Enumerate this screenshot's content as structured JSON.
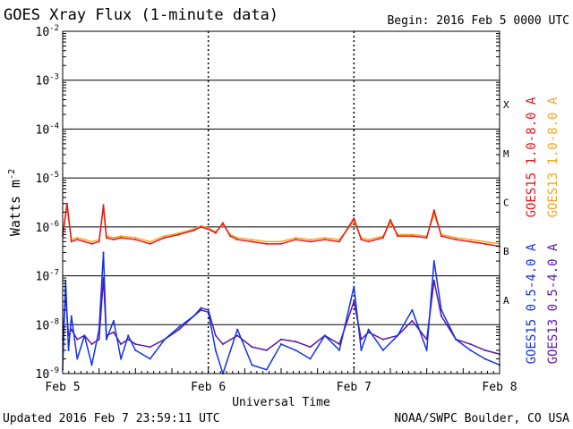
{
  "header": {
    "title": "GOES Xray Flux (1-minute data)",
    "begin_label": "Begin:",
    "begin_value": "2016 Feb 5 0000 UTC"
  },
  "footer": {
    "updated": "Updated 2016 Feb  7 23:59:11 UTC",
    "source": "NOAA/SWPC Boulder, CO USA"
  },
  "chart_data": {
    "type": "line",
    "title": "GOES Xray Flux (1-minute data)",
    "xlabel": "Universal Time",
    "ylabel_base": "Watts m",
    "ylabel_exp": "-2",
    "yscale": "log",
    "ylim_exp": [
      -9,
      -2
    ],
    "xlim_days": [
      0,
      3
    ],
    "x_ticks": [
      "Feb 5",
      "Feb 6",
      "Feb 7",
      "Feb 8"
    ],
    "y_ticks": [
      {
        "exp": -9,
        "label_base": "10",
        "label_exp": "-9"
      },
      {
        "exp": -8,
        "label_base": "10",
        "label_exp": "-8"
      },
      {
        "exp": -7,
        "label_base": "10",
        "label_exp": "-7"
      },
      {
        "exp": -6,
        "label_base": "10",
        "label_exp": "-6"
      },
      {
        "exp": -5,
        "label_base": "10",
        "label_exp": "-5"
      },
      {
        "exp": -4,
        "label_base": "10",
        "label_exp": "-4"
      },
      {
        "exp": -3,
        "label_base": "10",
        "label_exp": "-3"
      },
      {
        "exp": -2,
        "label_base": "10",
        "label_exp": "-2"
      }
    ],
    "flare_classes": [
      {
        "label": "A",
        "exp": -7.5
      },
      {
        "label": "B",
        "exp": -6.5
      },
      {
        "label": "C",
        "exp": -5.5
      },
      {
        "label": "M",
        "exp": -4.5
      },
      {
        "label": "X",
        "exp": -3.5
      }
    ],
    "grid": "horizontal decades, dotted day separators",
    "series": [
      {
        "name": "GOES15 1.0-8.0 A",
        "color": "#e8141c",
        "x": [
          0.0,
          0.03,
          0.06,
          0.1,
          0.15,
          0.2,
          0.25,
          0.28,
          0.3,
          0.35,
          0.4,
          0.5,
          0.6,
          0.7,
          0.8,
          0.9,
          0.95,
          1.0,
          1.05,
          1.1,
          1.15,
          1.2,
          1.3,
          1.4,
          1.5,
          1.6,
          1.7,
          1.8,
          1.9,
          2.0,
          2.05,
          2.1,
          2.2,
          2.25,
          2.3,
          2.4,
          2.5,
          2.55,
          2.6,
          2.7,
          2.8,
          2.9,
          3.0
        ],
        "y": [
          6.5e-07,
          3e-06,
          5e-07,
          5.5e-07,
          5e-07,
          4.5e-07,
          5e-07,
          2.8e-06,
          6e-07,
          5.5e-07,
          6e-07,
          5.5e-07,
          4.5e-07,
          6e-07,
          7e-07,
          8.5e-07,
          1e-06,
          9e-07,
          7.5e-07,
          1.2e-06,
          6.5e-07,
          5.5e-07,
          5e-07,
          4.5e-07,
          4.5e-07,
          5.5e-07,
          5e-07,
          5.5e-07,
          5e-07,
          1.5e-06,
          5.5e-07,
          5e-07,
          6e-07,
          1.4e-06,
          6.5e-07,
          6.5e-07,
          6e-07,
          2.2e-06,
          6.5e-07,
          5.5e-07,
          5e-07,
          4.5e-07,
          4e-07
        ]
      },
      {
        "name": "GOES13 1.0-8.0 A",
        "color": "#f5a623",
        "x": [
          0.0,
          0.03,
          0.06,
          0.1,
          0.15,
          0.2,
          0.25,
          0.28,
          0.3,
          0.35,
          0.4,
          0.5,
          0.6,
          0.7,
          0.8,
          0.9,
          0.95,
          1.0,
          1.05,
          1.1,
          1.15,
          1.2,
          1.3,
          1.4,
          1.5,
          1.6,
          1.7,
          1.8,
          1.9,
          2.0,
          2.05,
          2.1,
          2.2,
          2.25,
          2.3,
          2.4,
          2.5,
          2.55,
          2.6,
          2.7,
          2.8,
          2.9,
          3.0
        ],
        "y": [
          7e-07,
          2.5e-06,
          5.5e-07,
          6e-07,
          5.5e-07,
          5e-07,
          5.5e-07,
          2.4e-06,
          6.5e-07,
          6e-07,
          6.5e-07,
          6e-07,
          5e-07,
          6.5e-07,
          7.5e-07,
          9e-07,
          1.05e-06,
          9.5e-07,
          8e-07,
          1.1e-06,
          7e-07,
          6e-07,
          5.5e-07,
          5e-07,
          5e-07,
          6e-07,
          5.5e-07,
          6e-07,
          5.5e-07,
          1.3e-06,
          6e-07,
          5.5e-07,
          6.5e-07,
          1.2e-06,
          7e-07,
          7e-07,
          6.5e-07,
          1.8e-06,
          7e-07,
          6e-07,
          5.5e-07,
          5e-07,
          4.5e-07
        ]
      },
      {
        "name": "GOES15 0.5-4.0 A",
        "color": "#1432e6",
        "x": [
          0.0,
          0.02,
          0.04,
          0.06,
          0.1,
          0.15,
          0.2,
          0.25,
          0.28,
          0.3,
          0.35,
          0.4,
          0.45,
          0.5,
          0.6,
          0.7,
          0.8,
          0.9,
          0.95,
          1.0,
          1.05,
          1.1,
          1.2,
          1.3,
          1.4,
          1.5,
          1.6,
          1.7,
          1.8,
          1.9,
          2.0,
          2.05,
          2.1,
          2.2,
          2.3,
          2.4,
          2.5,
          2.55,
          2.6,
          2.7,
          2.8,
          2.9,
          3.0
        ],
        "y": [
          1.2e-09,
          8e-08,
          3e-09,
          1.5e-08,
          2e-09,
          6e-09,
          1.5e-09,
          8e-09,
          3e-07,
          5e-09,
          1.2e-08,
          2e-09,
          6e-09,
          3e-09,
          2e-09,
          5e-09,
          9e-09,
          1.5e-08,
          2e-08,
          1.8e-08,
          3e-09,
          1e-09,
          8e-09,
          1.5e-09,
          1.2e-09,
          4e-09,
          3e-09,
          2e-09,
          6e-09,
          3e-09,
          6e-08,
          3e-09,
          8e-09,
          3e-09,
          6e-09,
          2e-08,
          3e-09,
          2e-07,
          2e-08,
          5e-09,
          3e-09,
          2e-09,
          1.5e-09
        ]
      },
      {
        "name": "GOES13 0.5-4.0 A",
        "color": "#5a17a8",
        "x": [
          0.0,
          0.02,
          0.04,
          0.06,
          0.1,
          0.15,
          0.2,
          0.25,
          0.28,
          0.3,
          0.35,
          0.4,
          0.45,
          0.5,
          0.6,
          0.7,
          0.8,
          0.9,
          0.95,
          1.0,
          1.05,
          1.1,
          1.2,
          1.3,
          1.4,
          1.5,
          1.6,
          1.7,
          1.8,
          1.9,
          2.0,
          2.05,
          2.1,
          2.2,
          2.3,
          2.4,
          2.5,
          2.55,
          2.6,
          2.7,
          2.8,
          2.9,
          3.0
        ],
        "y": [
          5e-09,
          4e-08,
          6e-09,
          8e-09,
          5e-09,
          6e-09,
          4e-09,
          5e-09,
          9e-08,
          6e-09,
          7e-09,
          4e-09,
          5e-09,
          4e-09,
          3.5e-09,
          5e-09,
          8e-09,
          1.5e-08,
          2.2e-08,
          2e-08,
          6e-09,
          4e-09,
          6e-09,
          3.5e-09,
          3e-09,
          5e-09,
          4.5e-09,
          3.5e-09,
          6e-09,
          4e-09,
          3e-08,
          5e-09,
          7e-09,
          5e-09,
          6e-09,
          1.2e-08,
          5e-09,
          8e-08,
          1.5e-08,
          5e-09,
          4e-09,
          3e-09,
          2.5e-09
        ]
      }
    ]
  }
}
